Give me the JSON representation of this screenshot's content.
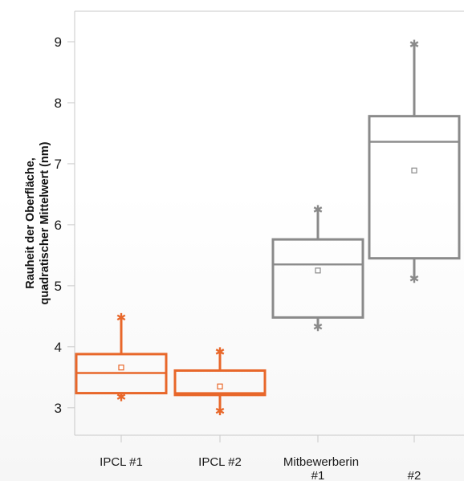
{
  "chart_data": {
    "type": "box",
    "title": "",
    "ylabel_lines": [
      "Rauheit der Oberfläche,",
      "quadratischer Mittelwert (nm)"
    ],
    "xlabel": "",
    "ylim": [
      2.55,
      9.5
    ],
    "yticks": [
      3,
      4,
      5,
      6,
      7,
      8,
      9
    ],
    "grid": false,
    "categories": [
      {
        "label": "IPCL #1",
        "sublabel": "",
        "color": "#e8672a"
      },
      {
        "label": "IPCL #2",
        "sublabel": "",
        "color": "#e8672a"
      },
      {
        "label": "Mitbewerberin",
        "sublabel": "#1",
        "color": "#8a8a8a"
      },
      {
        "label": "",
        "sublabel": "#2",
        "color": "#8a8a8a"
      }
    ],
    "boxes": [
      {
        "min": 3.18,
        "q1": 3.24,
        "median": 3.57,
        "q3": 3.88,
        "max": 4.48,
        "mean": 3.66
      },
      {
        "min": 2.95,
        "q1": 3.21,
        "median": 3.24,
        "q3": 3.61,
        "max": 3.92,
        "mean": 3.35
      },
      {
        "min": 4.33,
        "q1": 4.48,
        "median": 5.35,
        "q3": 5.76,
        "max": 6.25,
        "mean": 5.25
      },
      {
        "min": 5.12,
        "q1": 5.45,
        "median": 7.36,
        "q3": 7.78,
        "max": 8.96,
        "mean": 6.89
      }
    ]
  }
}
